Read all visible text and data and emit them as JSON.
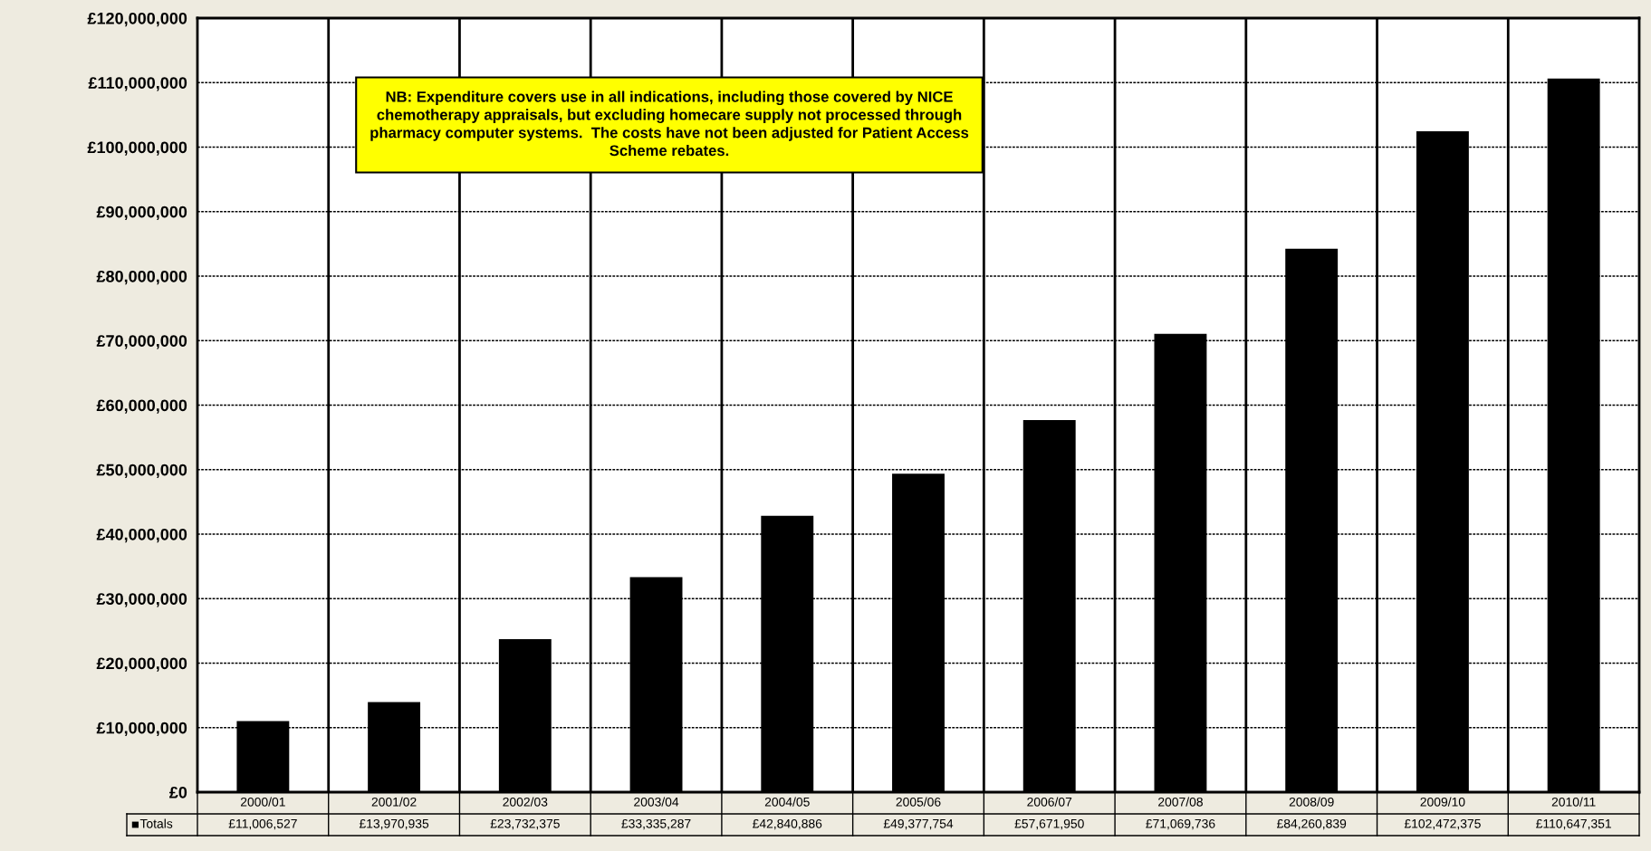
{
  "chart_data": {
    "type": "bar",
    "categories": [
      "2000/01",
      "2001/02",
      "2002/03",
      "2003/04",
      "2004/05",
      "2005/06",
      "2006/07",
      "2007/08",
      "2008/09",
      "2009/10",
      "2010/11"
    ],
    "series": [
      {
        "name": "Totals",
        "color": "#000000",
        "values": [
          11006527,
          13970935,
          23732375,
          33335287,
          42840886,
          49377754,
          57671950,
          71069736,
          84260839,
          102472375,
          110647351
        ],
        "value_labels": [
          "£11,006,527",
          "£13,970,935",
          "£23,732,375",
          "£33,335,287",
          "£42,840,886",
          "£49,377,754",
          "£57,671,950",
          "£71,069,736",
          "£84,260,839",
          "£102,472,375",
          "£110,647,351"
        ]
      }
    ],
    "ylim": [
      0,
      120000000
    ],
    "yticks": [
      {
        "value": 0,
        "label": "£0"
      },
      {
        "value": 10000000,
        "label": "£10,000,000"
      },
      {
        "value": 20000000,
        "label": "£20,000,000"
      },
      {
        "value": 30000000,
        "label": "£30,000,000"
      },
      {
        "value": 40000000,
        "label": "£40,000,000"
      },
      {
        "value": 50000000,
        "label": "£50,000,000"
      },
      {
        "value": 60000000,
        "label": "£60,000,000"
      },
      {
        "value": 70000000,
        "label": "£70,000,000"
      },
      {
        "value": 80000000,
        "label": "£80,000,000"
      },
      {
        "value": 90000000,
        "label": "£90,000,000"
      },
      {
        "value": 100000000,
        "label": "£100,000,000"
      },
      {
        "value": 110000000,
        "label": "£110,000,000"
      },
      {
        "value": 120000000,
        "label": "£120,000,000"
      }
    ],
    "grid": true,
    "legend": "bottom left",
    "annotations": [
      "NB: Expenditure covers use in all indications, including those covered by NICE\nchemotherapy appraisals, but excluding homecare supply not processed through\npharmacy computer systems.  The costs have not been adjusted for Patient Access\nScheme rebates."
    ]
  }
}
